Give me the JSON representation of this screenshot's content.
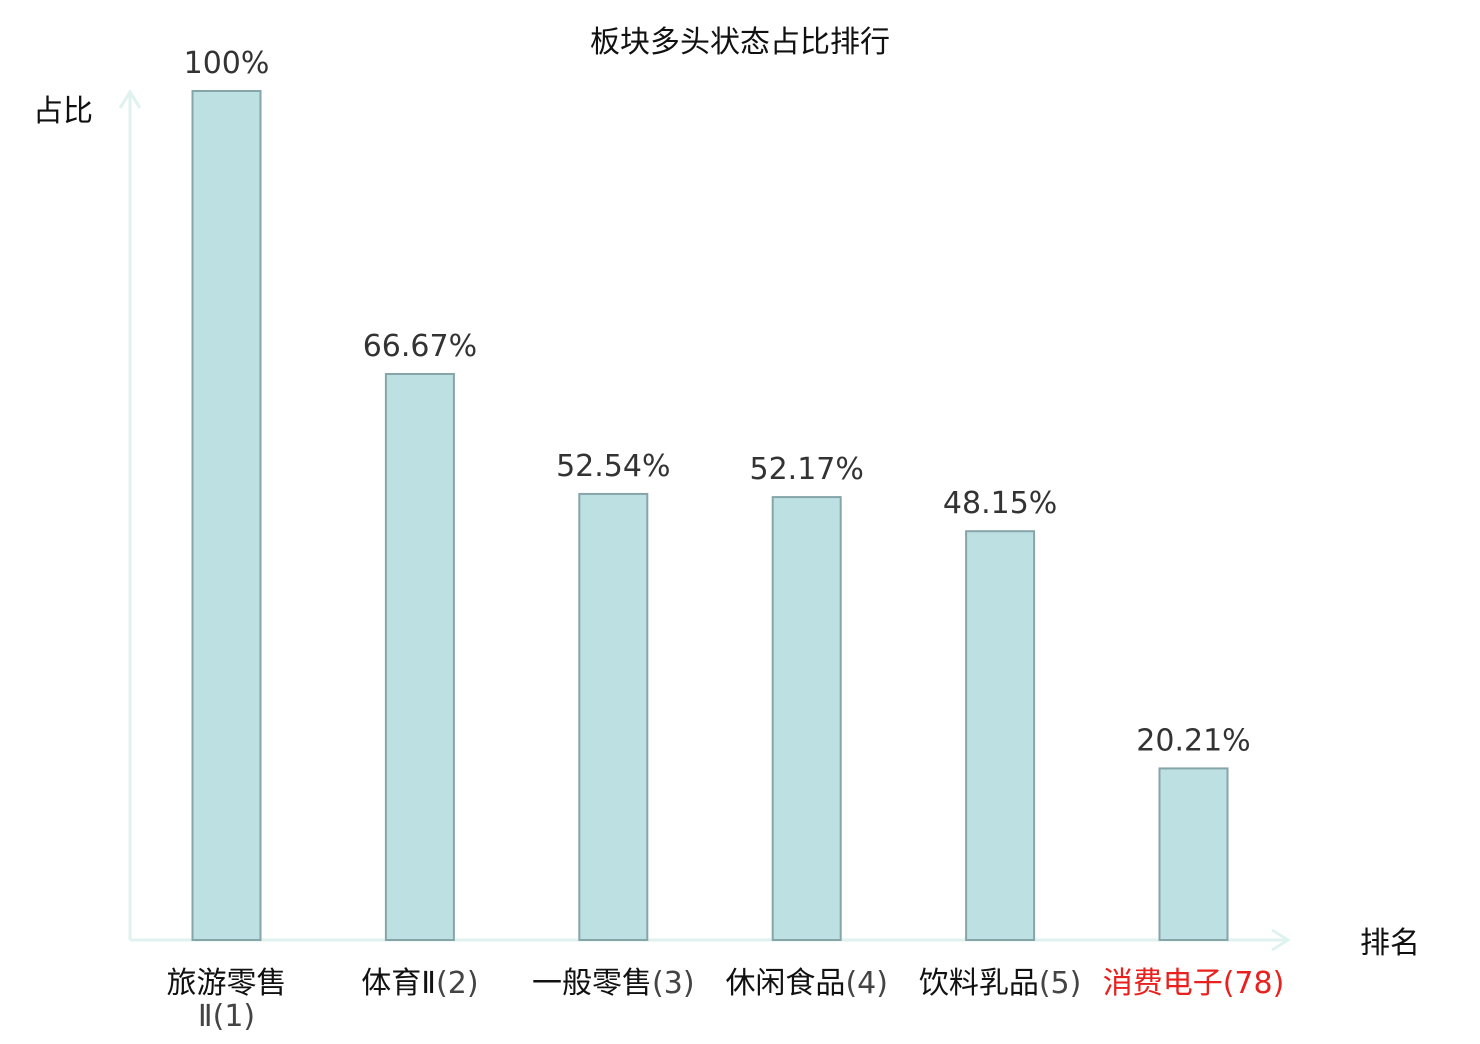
{
  "chart_data": {
    "type": "bar",
    "title": "板块多头状态占比排行",
    "ylabel": "占比",
    "xlabel": "排名",
    "ylim": [
      0,
      100
    ],
    "grid": false,
    "categories": [
      {
        "name": "旅游零售Ⅱ",
        "rank": "(1)",
        "highlight": false
      },
      {
        "name": "体育Ⅱ",
        "rank": "(2)",
        "highlight": false
      },
      {
        "name": "一般零售",
        "rank": "(3)",
        "highlight": false
      },
      {
        "name": "休闲食品",
        "rank": "(4)",
        "highlight": false
      },
      {
        "name": "饮料乳品",
        "rank": "(5)",
        "highlight": false
      },
      {
        "name": "消费电子",
        "rank": "(78)",
        "highlight": true
      }
    ],
    "values": [
      100,
      66.67,
      52.54,
      52.17,
      48.15,
      20.21
    ],
    "value_labels": [
      "100%",
      "66.67%",
      "52.54%",
      "52.17%",
      "48.15%",
      "20.21%"
    ],
    "colors": {
      "bar_fill": "#bde0e2",
      "bar_stroke": "#86a5a8",
      "axis": "#e0f2ef",
      "text": "#333333",
      "highlight": "#e8201e"
    }
  }
}
